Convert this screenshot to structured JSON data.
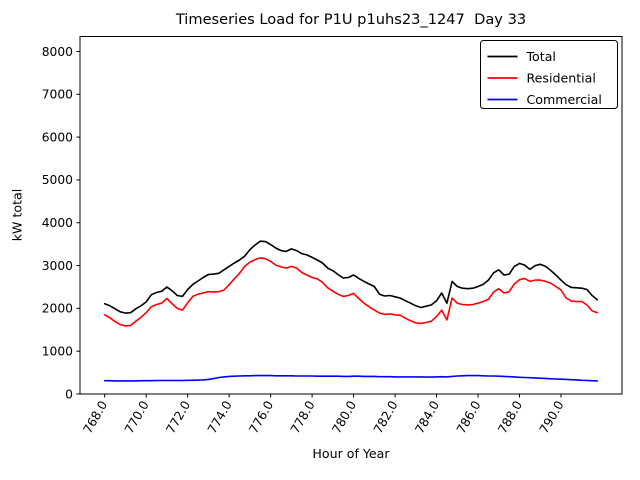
{
  "title": "Timeseries Load for P1U p1uhs23_1247  Day 33",
  "colors": {
    "total": "#000000",
    "residential": "#ff0000",
    "commercial": "#0000ff",
    "background": "#ffffff",
    "axes": "#000000"
  },
  "legend": {
    "entries": [
      "Total",
      "Residential",
      "Commercial"
    ],
    "position": "upper right"
  },
  "chart_data": {
    "type": "line",
    "title": "Timeseries Load for P1U p1uhs23_1247  Day 33",
    "xlabel": "Hour of Year",
    "ylabel": "kW total",
    "xlim": [
      766.81,
      792.94
    ],
    "ylim": [
      0,
      8350
    ],
    "grid": false,
    "legend_position": "upper right",
    "xticks": [
      768.0,
      770.0,
      772.0,
      774.0,
      776.0,
      778.0,
      780.0,
      782.0,
      784.0,
      786.0,
      788.0,
      790.0
    ],
    "xtick_labels": [
      "768.0",
      "770.0",
      "772.0",
      "774.0",
      "776.0",
      "778.0",
      "780.0",
      "782.0",
      "784.0",
      "786.0",
      "788.0",
      "790.0"
    ],
    "yticks": [
      0,
      1000,
      2000,
      3000,
      4000,
      5000,
      6000,
      7000,
      8000
    ],
    "x_start": 768.0,
    "x_step": 0.25,
    "series": [
      {
        "name": "Total",
        "color": "#000000",
        "values": [
          2110,
          2060,
          1990,
          1920,
          1890,
          1900,
          1990,
          2060,
          2150,
          2320,
          2370,
          2400,
          2500,
          2410,
          2300,
          2280,
          2440,
          2560,
          2640,
          2720,
          2790,
          2800,
          2820,
          2900,
          2980,
          3060,
          3130,
          3220,
          3370,
          3480,
          3570,
          3560,
          3490,
          3410,
          3350,
          3330,
          3390,
          3350,
          3280,
          3250,
          3190,
          3130,
          3060,
          2940,
          2880,
          2790,
          2710,
          2720,
          2780,
          2700,
          2630,
          2570,
          2510,
          2330,
          2290,
          2300,
          2270,
          2240,
          2180,
          2120,
          2060,
          2020,
          2050,
          2080,
          2180,
          2360,
          2120,
          2630,
          2510,
          2470,
          2460,
          2470,
          2510,
          2560,
          2660,
          2830,
          2900,
          2780,
          2800,
          2980,
          3050,
          3010,
          2910,
          3000,
          3030,
          2980,
          2890,
          2780,
          2660,
          2550,
          2490,
          2480,
          2470,
          2440,
          2300,
          2200
        ]
      },
      {
        "name": "Residential",
        "color": "#ff0000",
        "values": [
          1850,
          1780,
          1690,
          1620,
          1590,
          1600,
          1700,
          1790,
          1900,
          2040,
          2090,
          2120,
          2230,
          2110,
          2000,
          1960,
          2130,
          2280,
          2330,
          2360,
          2390,
          2380,
          2390,
          2430,
          2550,
          2690,
          2820,
          2980,
          3080,
          3140,
          3180,
          3160,
          3100,
          3010,
          2970,
          2940,
          2980,
          2940,
          2840,
          2780,
          2720,
          2690,
          2610,
          2480,
          2400,
          2330,
          2280,
          2300,
          2350,
          2230,
          2120,
          2040,
          1960,
          1890,
          1860,
          1870,
          1850,
          1840,
          1770,
          1710,
          1660,
          1650,
          1670,
          1700,
          1810,
          1960,
          1730,
          2240,
          2120,
          2090,
          2080,
          2090,
          2120,
          2160,
          2210,
          2380,
          2460,
          2360,
          2390,
          2570,
          2670,
          2700,
          2630,
          2660,
          2660,
          2630,
          2590,
          2510,
          2430,
          2240,
          2170,
          2160,
          2160,
          2080,
          1940,
          1900
        ]
      },
      {
        "name": "Commercial",
        "color": "#0000ff",
        "values": [
          310,
          310,
          305,
          305,
          305,
          305,
          305,
          310,
          310,
          310,
          315,
          315,
          315,
          315,
          315,
          315,
          320,
          320,
          325,
          330,
          340,
          360,
          385,
          400,
          410,
          415,
          420,
          425,
          425,
          430,
          430,
          430,
          430,
          425,
          425,
          425,
          425,
          420,
          420,
          420,
          420,
          415,
          415,
          415,
          415,
          415,
          410,
          410,
          415,
          415,
          410,
          410,
          410,
          405,
          405,
          405,
          400,
          400,
          400,
          400,
          400,
          400,
          395,
          395,
          400,
          405,
          400,
          410,
          420,
          425,
          430,
          430,
          430,
          425,
          420,
          420,
          415,
          410,
          405,
          400,
          390,
          385,
          380,
          375,
          370,
          365,
          355,
          350,
          345,
          340,
          335,
          330,
          320,
          315,
          310,
          305
        ]
      }
    ]
  }
}
